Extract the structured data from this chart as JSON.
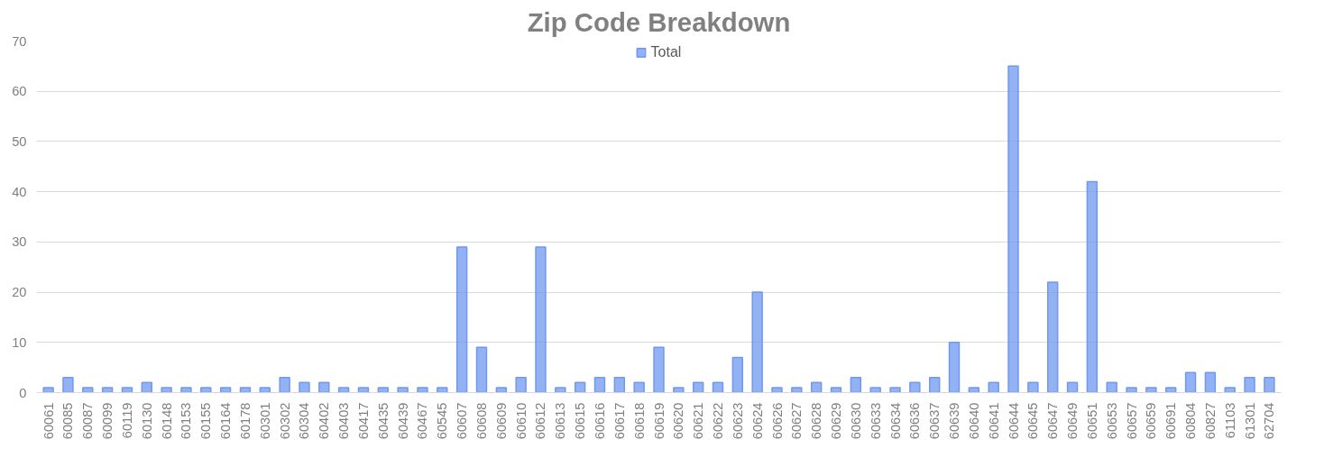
{
  "chart_data": {
    "type": "bar",
    "title": "Zip Code Breakdown",
    "categories": [
      "60061",
      "60085",
      "60087",
      "60099",
      "60119",
      "60130",
      "60148",
      "60153",
      "60155",
      "60164",
      "60178",
      "60301",
      "60302",
      "60304",
      "60402",
      "60403",
      "60417",
      "60435",
      "60439",
      "60467",
      "60545",
      "60607",
      "60608",
      "60609",
      "60610",
      "60612",
      "60613",
      "60615",
      "60616",
      "60617",
      "60618",
      "60619",
      "60620",
      "60621",
      "60622",
      "60623",
      "60624",
      "60626",
      "60627",
      "60628",
      "60629",
      "60630",
      "60633",
      "60634",
      "60636",
      "60637",
      "60639",
      "60640",
      "60641",
      "60644",
      "60645",
      "60647",
      "60649",
      "60651",
      "60653",
      "60657",
      "60659",
      "60691",
      "60804",
      "60827",
      "61103",
      "61301",
      "62704"
    ],
    "series": [
      {
        "name": "Total",
        "color": "#6f98f0",
        "values": [
          1,
          3,
          1,
          1,
          1,
          2,
          1,
          1,
          1,
          1,
          1,
          1,
          3,
          2,
          2,
          1,
          1,
          1,
          1,
          1,
          1,
          29,
          9,
          1,
          3,
          29,
          1,
          2,
          3,
          3,
          2,
          9,
          1,
          2,
          2,
          7,
          20,
          1,
          1,
          2,
          1,
          3,
          1,
          1,
          2,
          3,
          10,
          1,
          2,
          65,
          2,
          22,
          2,
          42,
          2,
          1,
          1,
          1,
          4,
          4,
          1,
          3,
          3
        ]
      }
    ],
    "ylim": [
      0,
      70
    ],
    "yticks": [
      0,
      10,
      20,
      30,
      40,
      50,
      60,
      70
    ],
    "grid": "y",
    "legend": "top"
  }
}
